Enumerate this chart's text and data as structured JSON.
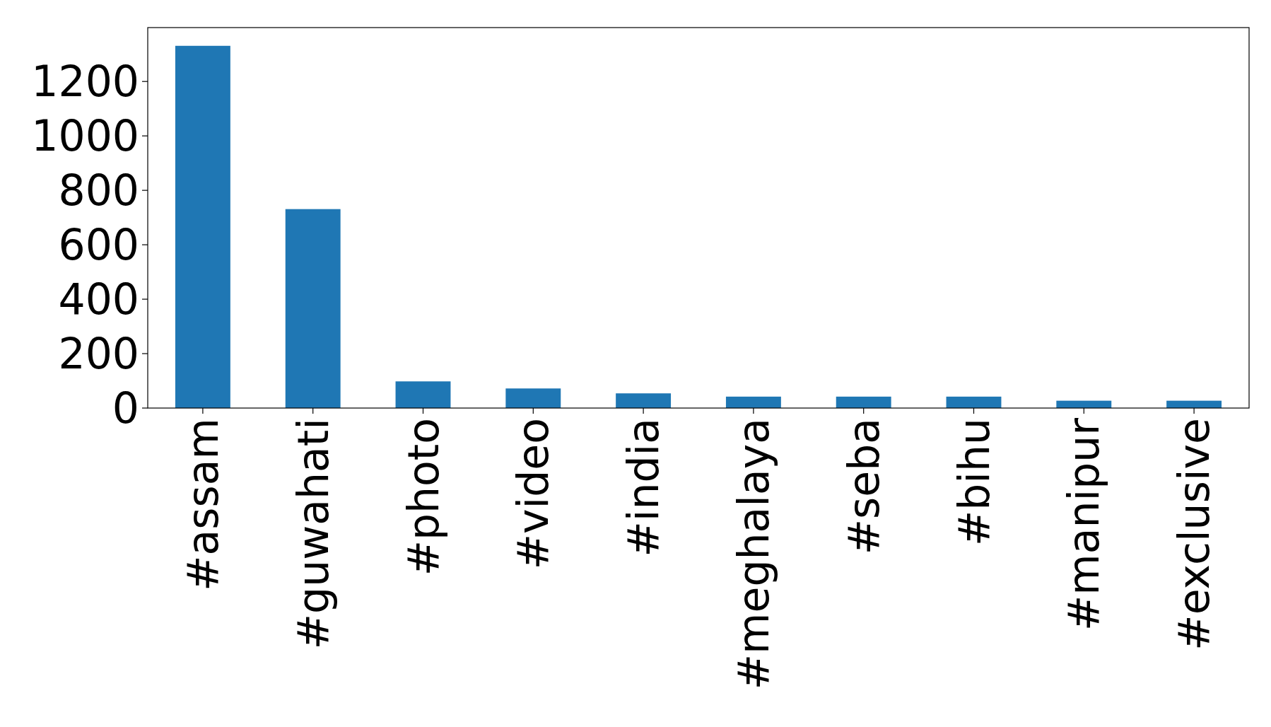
{
  "chart_data": {
    "type": "bar",
    "categories": [
      "#assam",
      "#guwahati",
      "#photo",
      "#video",
      "#india",
      "#meghalaya",
      "#seba",
      "#bihu",
      "#manipur",
      "#exclusive"
    ],
    "values": [
      1331,
      731,
      98,
      72,
      54,
      42,
      42,
      42,
      27,
      27
    ],
    "color": "#1f77b4",
    "ylim": [
      0,
      1398
    ],
    "yticks": [
      0,
      200,
      400,
      600,
      800,
      1000,
      1200
    ]
  }
}
